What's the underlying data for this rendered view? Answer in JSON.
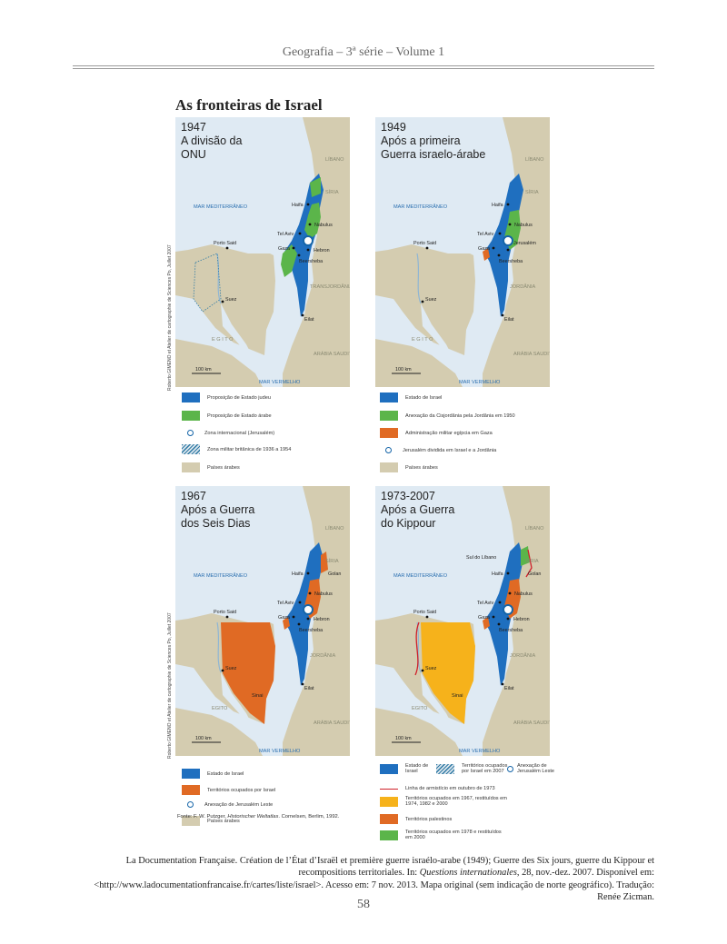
{
  "header": {
    "running_title": "Geografia – 3ª série – Volume 1"
  },
  "figure_title": "As fronteiras de Israel",
  "credit": "Roberto GIMENO et Atelier de cartographie de Sciences Po, Juillet 2007",
  "scale_label": "100 km",
  "panels": [
    {
      "title": "1947\nA divisão da\nONU",
      "labels": {
        "libano": "LÍBANO",
        "siria": "SÍRIA",
        "mar_med": "MAR MEDITERRÂNEO",
        "haifa": "Haifa",
        "nabulus": "Nabulus",
        "tel_aviv": "Tel Aviv",
        "jerusalem": "",
        "porto_said": "Porto Said",
        "gaza": "Gaza",
        "hebron": "Hebron",
        "beersheba": "Beersheba",
        "jordan": "TRANSJORDÂNIA",
        "suez": "Suez",
        "eilat": "Eilat",
        "egito": "E G I T O",
        "arabia": "ARÁBIA SAUDITA",
        "mar_verm": "MAR VERMELHO",
        "sinai": "",
        "golan": "",
        "sul_libano": ""
      }
    },
    {
      "title": "1949\nApós a primeira\nGuerra israelo-árabe",
      "labels": {
        "libano": "LÍBANO",
        "siria": "SÍRIA",
        "mar_med": "MAR MEDITERRÂNEO",
        "haifa": "Haifa",
        "nabulus": "Nabulus",
        "tel_aviv": "Tel Aviv",
        "jerusalem": "Jerusalém",
        "porto_said": "Porto Said",
        "gaza": "Gaza",
        "hebron": "",
        "beersheba": "Beersheba",
        "jordan": "JORDÂNIA",
        "suez": "Suez",
        "eilat": "Eilat",
        "egito": "E G I T O",
        "arabia": "ARÁBIA SAUDITA",
        "mar_verm": "MAR VERMELHO",
        "sinai": "",
        "golan": "",
        "sul_libano": ""
      }
    },
    {
      "title": "1967\nApós a Guerra\ndos Seis Dias",
      "labels": {
        "libano": "LÍBANO",
        "siria": "SÍRIA",
        "mar_med": "MAR MEDITERRÂNEO",
        "haifa": "Haifa",
        "nabulus": "Nabulus",
        "tel_aviv": "Tel Aviv",
        "jerusalem": "",
        "porto_said": "Porto Said",
        "gaza": "Gaza",
        "hebron": "Hebron",
        "beersheba": "Beersheba",
        "jordan": "JORDÂNIA",
        "suez": "Suez",
        "eilat": "Eilat",
        "egito": "EGITO",
        "arabia": "ARÁBIA SAUDITA",
        "mar_verm": "MAR VERMELHO",
        "sinai": "Sinai",
        "golan": "Golan",
        "sul_libano": ""
      }
    },
    {
      "title": "1973-2007\nApós a Guerra\ndo Kippour",
      "labels": {
        "libano": "LÍBANO",
        "siria": "SÍRIA",
        "mar_med": "MAR MEDITERRÂNEO",
        "haifa": "Haifa",
        "nabulus": "Nabulus",
        "tel_aviv": "Tel Aviv",
        "jerusalem": "",
        "porto_said": "Porto Said",
        "gaza": "Gaza",
        "hebron": "Hebron",
        "beersheba": "Beersheba",
        "jordan": "JORDÂNIA",
        "suez": "Suez",
        "eilat": "Eilat",
        "egito": "EGITO",
        "arabia": "ARÁBIA SAUDITA",
        "mar_verm": "MAR VERMELHO",
        "sinai": "Sinai",
        "golan": "Golan",
        "sul_libano": "Sul do Líbano"
      }
    }
  ],
  "legends": [
    [
      "Proposição de Estado judeu",
      "Proposição de Estado árabe",
      "Zona internacional (Jerusalém)",
      "Zona militar britânica de 1936 a 1954",
      "Países árabes"
    ],
    [
      "Estado de Israel",
      "Anexação da Cisjordânia pela Jordânia em 1950",
      "Administração militar egípcia em Gaza",
      "Jerusalém dividida em Israel e a Jordânia",
      "Países árabes"
    ],
    [
      "Estado de Israel",
      "Territórios ocupados por Israel",
      "Anexação de Jerusalém Leste",
      "Países árabes"
    ],
    [
      "Estado de Israel",
      "Territórios ocupados por Israel em 2007",
      "Anexação de Jerusalém Leste",
      "Linha de armistício em outubro de 1973",
      "Territórios ocupados em 1967, restituídos em 1974, 1982 e 2000",
      "Territórios palestinos",
      "Territórios ocupados em 1978 e restituídos em 2000"
    ]
  ],
  "colors": {
    "israel": "#1f6fbf",
    "arab": "#5bb54a",
    "occupied": "#e06a24",
    "sinai_returned": "#f6b21b",
    "land": "#d4ccb0",
    "sea": "#dfeaf3",
    "border": "#d0202a"
  },
  "source": {
    "prefix": "Fonte: F. W. Putzger, ",
    "book": "Historischer Weltatlas",
    "suffix": ". Cornelsen, Berlim, 1992."
  },
  "caption": {
    "p1": "La Documentation Française. Création de l’État d’Israël et première guerre israélo-arabe (1949); Guerre des Six jours, guerre du Kippour et recompositions territoriales. In: ",
    "journal": "Questions internationales",
    "p2": ", 28, nov.-dez. 2007. Disponível em: <http://www.ladocumentationfrancaise.fr/cartes/liste/israel>. Acesso em: 7 nov. 2013. Mapa original (sem indicação de norte geográfico). Tradução: Renée Zicman."
  },
  "page_number": "58"
}
